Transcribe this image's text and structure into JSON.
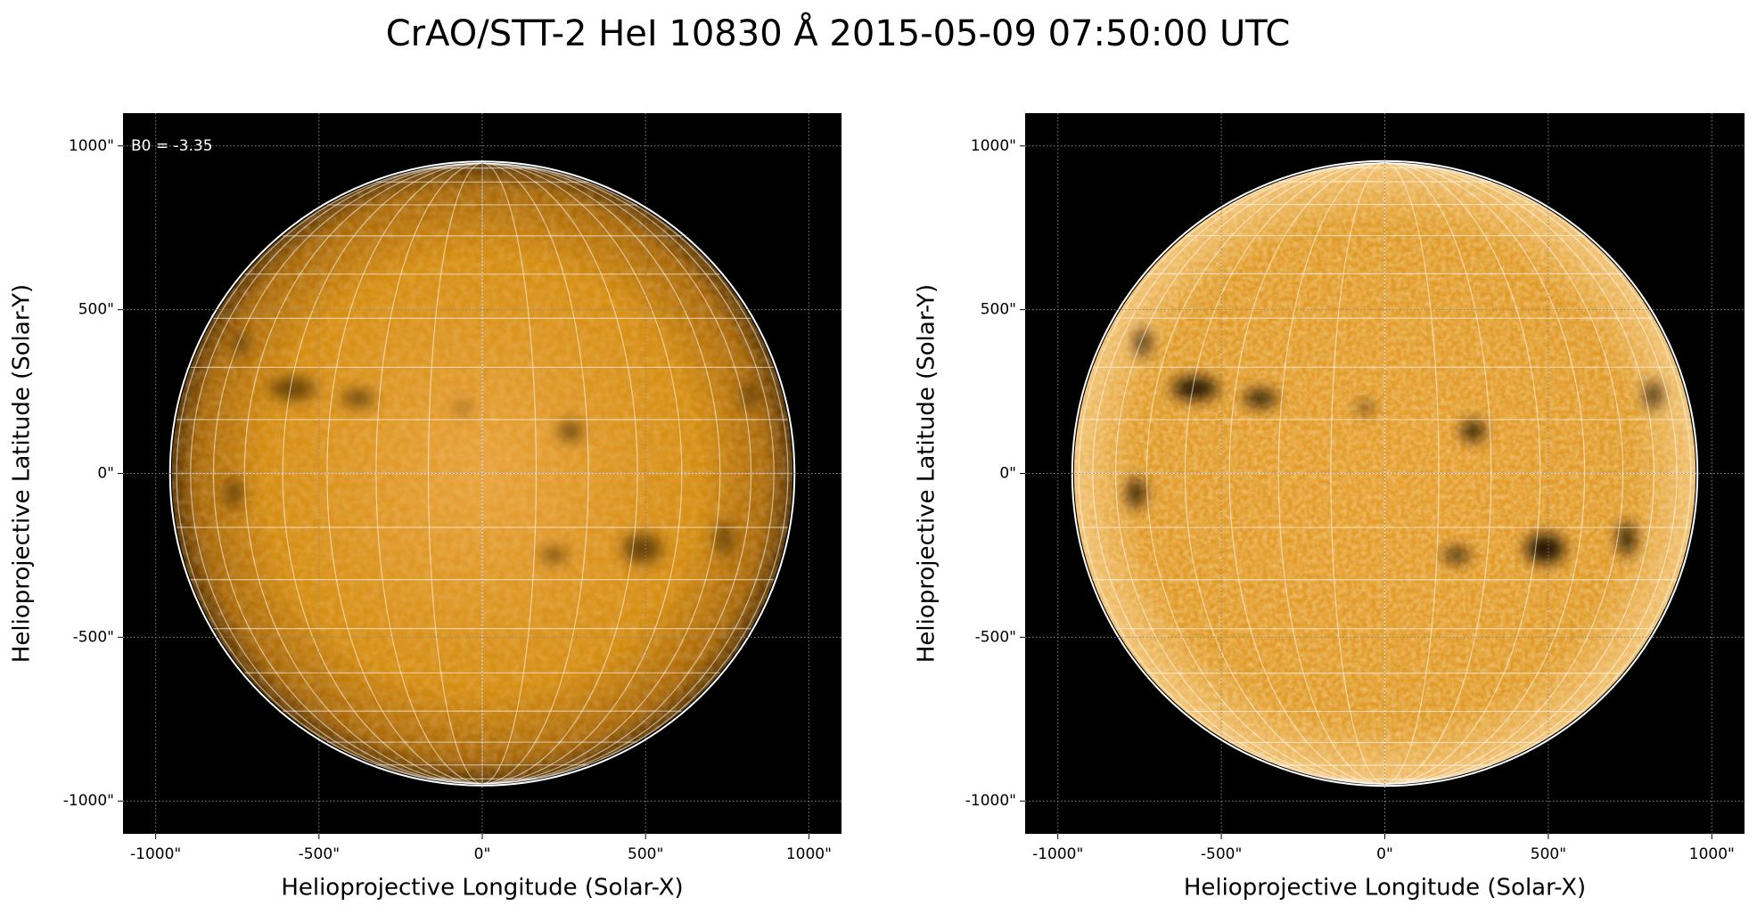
{
  "title": "CrAO/STT-2 HeI 10830 Å 2015-05-09 07:50:00 UTC",
  "chart_data": [
    {
      "type": "image",
      "annotation": "B0 = -3.35",
      "xlabel": "Helioprojective Longitude (Solar-X)",
      "ylabel": "Helioprojective Latitude (Solar-Y)",
      "xlim": [
        -1100,
        1100
      ],
      "ylim": [
        -1100,
        1100
      ],
      "xticks": [
        {
          "value": -1000,
          "label": "-1000\""
        },
        {
          "value": -500,
          "label": "-500\""
        },
        {
          "value": 0,
          "label": "0\""
        },
        {
          "value": 500,
          "label": "500\""
        },
        {
          "value": 1000,
          "label": "1000\""
        }
      ],
      "yticks": [
        {
          "value": -1000,
          "label": "-1000\""
        },
        {
          "value": -500,
          "label": "-500\""
        },
        {
          "value": 0,
          "label": "0\""
        },
        {
          "value": 500,
          "label": "500\""
        },
        {
          "value": 1000,
          "label": "1000\""
        }
      ],
      "grid": true
    },
    {
      "type": "image",
      "xlabel": "Helioprojective Longitude (Solar-X)",
      "ylabel": "Helioprojective Latitude (Solar-Y)",
      "xlim": [
        -1100,
        1100
      ],
      "ylim": [
        -1100,
        1100
      ],
      "xticks": [
        {
          "value": -1000,
          "label": "-1000\""
        },
        {
          "value": -500,
          "label": "-500\""
        },
        {
          "value": 0,
          "label": "0\""
        },
        {
          "value": 500,
          "label": "500\""
        },
        {
          "value": 1000,
          "label": "1000\""
        }
      ],
      "yticks": [
        {
          "value": -1000,
          "label": "-1000\""
        },
        {
          "value": -500,
          "label": "-500\""
        },
        {
          "value": 0,
          "label": "0\""
        },
        {
          "value": 500,
          "label": "500\""
        },
        {
          "value": 1000,
          "label": "1000\""
        }
      ],
      "grid": true
    }
  ]
}
